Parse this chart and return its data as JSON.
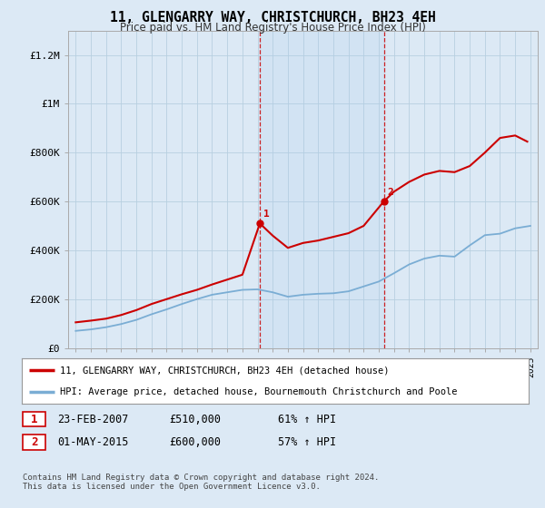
{
  "title": "11, GLENGARRY WAY, CHRISTCHURCH, BH23 4EH",
  "subtitle": "Price paid vs. HM Land Registry's House Price Index (HPI)",
  "legend_line1": "11, GLENGARRY WAY, CHRISTCHURCH, BH23 4EH (detached house)",
  "legend_line2": "HPI: Average price, detached house, Bournemouth Christchurch and Poole",
  "footnote": "Contains HM Land Registry data © Crown copyright and database right 2024.\nThis data is licensed under the Open Government Licence v3.0.",
  "transaction1": {
    "num": "1",
    "date": "23-FEB-2007",
    "price": "£510,000",
    "hpi": "61% ↑ HPI"
  },
  "transaction2": {
    "num": "2",
    "date": "01-MAY-2015",
    "price": "£600,000",
    "hpi": "57% ↑ HPI"
  },
  "hpi_color": "#7aadd4",
  "price_color": "#cc0000",
  "vline_color": "#cc0000",
  "background_color": "#dce9f5",
  "plot_bg": "#dce9f5",
  "ylim": [
    0,
    1300000
  ],
  "xlim_start": 1994.5,
  "xlim_end": 2025.5,
  "yticks": [
    0,
    200000,
    400000,
    600000,
    800000,
    1000000,
    1200000
  ],
  "ytick_labels": [
    "£0",
    "£200K",
    "£400K",
    "£600K",
    "£800K",
    "£1M",
    "£1.2M"
  ],
  "xticks": [
    1995,
    1996,
    1997,
    1998,
    1999,
    2000,
    2001,
    2002,
    2003,
    2004,
    2005,
    2006,
    2007,
    2008,
    2009,
    2010,
    2011,
    2012,
    2013,
    2014,
    2015,
    2016,
    2017,
    2018,
    2019,
    2020,
    2021,
    2022,
    2023,
    2024,
    2025
  ],
  "hpi_years": [
    1995,
    1996,
    1997,
    1998,
    1999,
    2000,
    2001,
    2002,
    2003,
    2004,
    2005,
    2006,
    2007,
    2008,
    2009,
    2010,
    2011,
    2012,
    2013,
    2014,
    2015,
    2016,
    2017,
    2018,
    2019,
    2020,
    2021,
    2022,
    2023,
    2024,
    2025
  ],
  "hpi_values": [
    70000,
    76000,
    85000,
    98000,
    115000,
    138000,
    158000,
    180000,
    200000,
    218000,
    228000,
    238000,
    240000,
    228000,
    210000,
    218000,
    222000,
    224000,
    232000,
    252000,
    272000,
    306000,
    342000,
    366000,
    378000,
    374000,
    420000,
    462000,
    468000,
    490000,
    500000
  ],
  "price_years": [
    1995,
    1996,
    1997,
    1998,
    1999,
    2000,
    2001,
    2002,
    2003,
    2004,
    2005,
    2006,
    2007.15,
    2008,
    2009,
    2010,
    2011,
    2012,
    2013,
    2014,
    2015.33,
    2016,
    2017,
    2018,
    2019,
    2020,
    2021,
    2022,
    2023,
    2024,
    2024.8
  ],
  "price_values": [
    105000,
    112000,
    120000,
    135000,
    155000,
    180000,
    200000,
    220000,
    238000,
    260000,
    280000,
    300000,
    510000,
    460000,
    410000,
    430000,
    440000,
    455000,
    470000,
    500000,
    600000,
    640000,
    680000,
    710000,
    725000,
    720000,
    745000,
    800000,
    860000,
    870000,
    845000
  ],
  "marker1_x": 2007.15,
  "marker1_y": 510000,
  "marker2_x": 2015.33,
  "marker2_y": 600000,
  "span_alpha": 0.18,
  "span_color": "#aaccee"
}
